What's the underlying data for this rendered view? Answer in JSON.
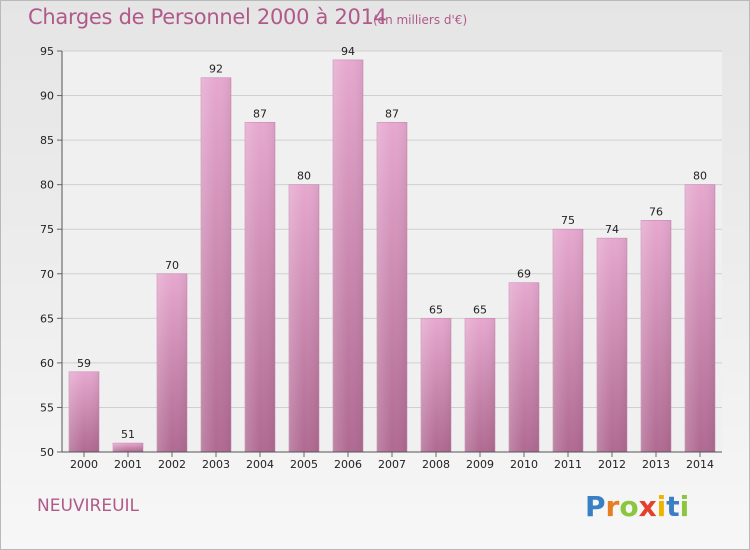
{
  "header": {
    "title": "Charges de Personnel 2000 à 2014",
    "subtitle": "(en milliers d'€)"
  },
  "footer": {
    "commune": "NEUVIREUIL",
    "logo": {
      "letters": [
        "P",
        "r",
        "o",
        "x",
        "i",
        "t",
        "i"
      ],
      "colors": [
        "#3a7fc4",
        "#e67e22",
        "#8cc63f",
        "#e2412d",
        "#f0b400",
        "#3a7fc4",
        "#8cc63f"
      ]
    }
  },
  "chart_data": {
    "type": "bar",
    "title": "Charges de Personnel 2000 à 2014",
    "subtitle": "(en milliers d'€)",
    "xlabel": "",
    "ylabel": "",
    "categories": [
      "2000",
      "2001",
      "2002",
      "2003",
      "2004",
      "2005",
      "2006",
      "2007",
      "2008",
      "2009",
      "2010",
      "2011",
      "2012",
      "2013",
      "2014"
    ],
    "values": [
      59,
      51,
      70,
      92,
      87,
      80,
      94,
      87,
      65,
      65,
      69,
      75,
      74,
      76,
      80
    ],
    "ylim": [
      50,
      95
    ],
    "yticks": [
      50,
      55,
      60,
      65,
      70,
      75,
      80,
      85,
      90,
      95
    ],
    "grid": true,
    "legend": "none",
    "bar_color": "#d98cb9"
  }
}
